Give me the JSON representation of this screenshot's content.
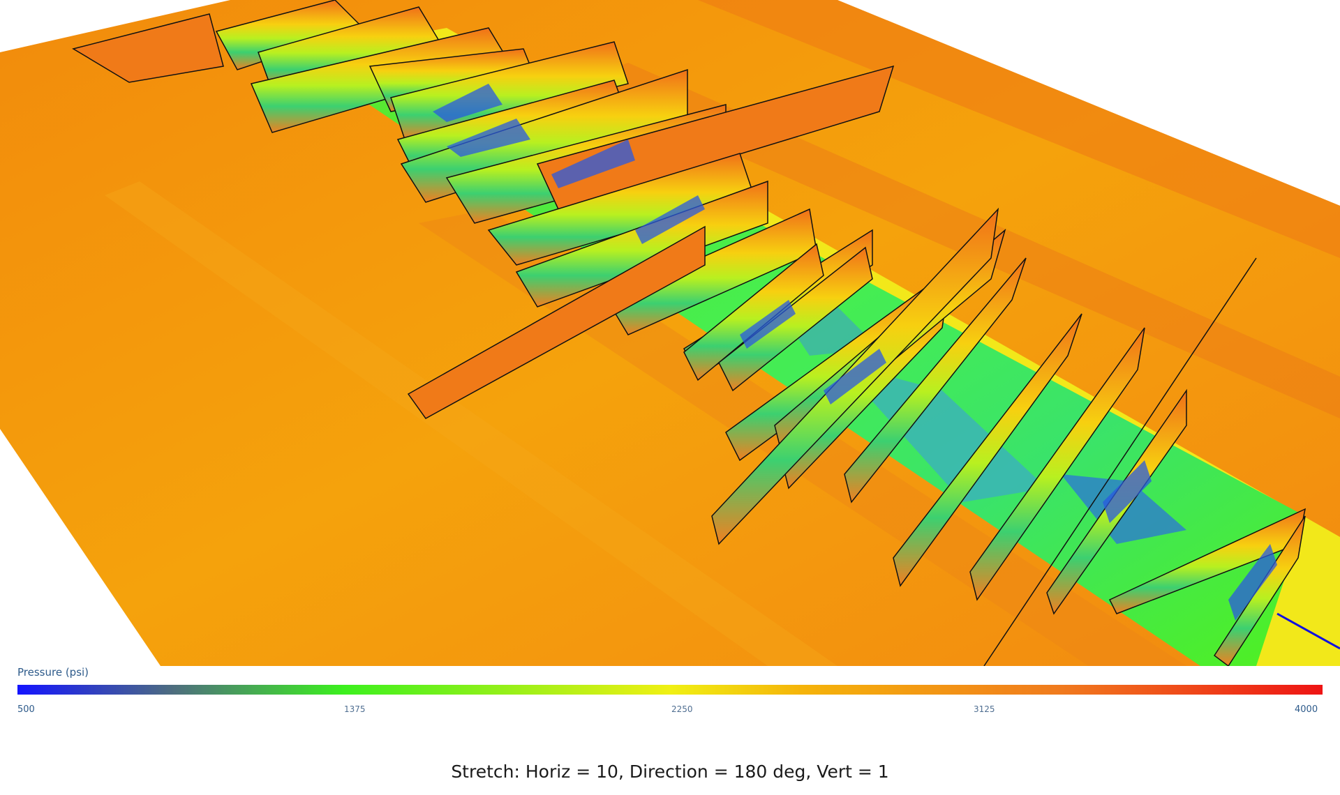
{
  "legend": {
    "title": "Pressure (psi)",
    "min": 500,
    "max": 4000,
    "ticks": [
      "500",
      "1375",
      "2250",
      "3125",
      "4000"
    ],
    "colors": [
      "#1414ff",
      "#4e8a4e",
      "#3cf01e",
      "#f0f014",
      "#f5aa0a",
      "#f0781e",
      "#ee1414"
    ]
  },
  "scene": {
    "background_field_color": "#f5a00a",
    "channel_color": "#4cf02a",
    "well_line_color": "#1010e0"
  },
  "caption": "Stretch: Horiz = 10, Direction = 180 deg, Vert = 1"
}
